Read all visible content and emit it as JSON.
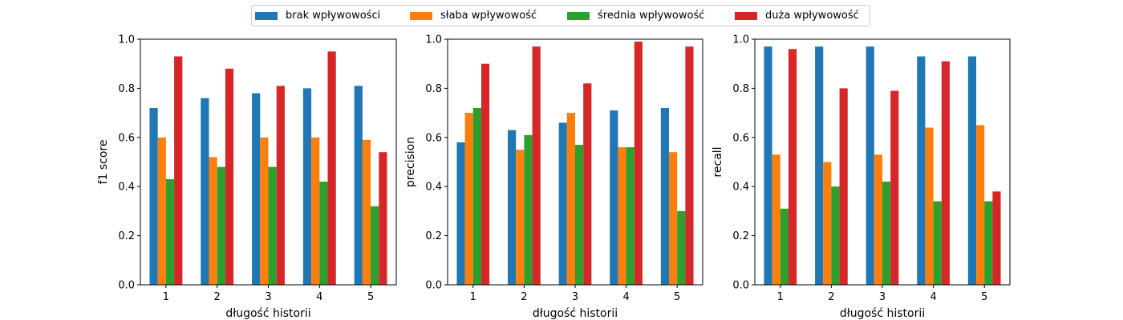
{
  "legend": [
    {
      "label": "brak wpływowości",
      "color": "#1f77b4"
    },
    {
      "label": "słaba wpływowość",
      "color": "#ff7f0e"
    },
    {
      "label": "średnia wpływowość",
      "color": "#2ca02c"
    },
    {
      "label": "duża wpływowość",
      "color": "#d62728"
    }
  ],
  "chart_data": [
    {
      "type": "bar",
      "categories": [
        "1",
        "2",
        "3",
        "4",
        "5"
      ],
      "xlabel": "długość historii",
      "ylabel": "f1 score",
      "ylim": [
        0,
        1.0
      ],
      "yticks": [
        "0.0",
        "0.2",
        "0.4",
        "0.6",
        "0.8",
        "1.0"
      ],
      "series": [
        {
          "name": "brak wpływowości",
          "values": [
            0.72,
            0.76,
            0.78,
            0.8,
            0.81
          ]
        },
        {
          "name": "słaba wpływowość",
          "values": [
            0.6,
            0.52,
            0.6,
            0.6,
            0.59
          ]
        },
        {
          "name": "średnia wpływowość",
          "values": [
            0.43,
            0.48,
            0.48,
            0.42,
            0.32
          ]
        },
        {
          "name": "duża wpływowość",
          "values": [
            0.93,
            0.88,
            0.81,
            0.95,
            0.54
          ]
        }
      ]
    },
    {
      "type": "bar",
      "categories": [
        "1",
        "2",
        "3",
        "4",
        "5"
      ],
      "xlabel": "długość historii",
      "ylabel": "precision",
      "ylim": [
        0,
        1.0
      ],
      "yticks": [
        "0.0",
        "0.2",
        "0.4",
        "0.6",
        "0.8",
        "1.0"
      ],
      "series": [
        {
          "name": "brak wpływowości",
          "values": [
            0.58,
            0.63,
            0.66,
            0.71,
            0.72
          ]
        },
        {
          "name": "słaba wpływowość",
          "values": [
            0.7,
            0.55,
            0.7,
            0.56,
            0.54
          ]
        },
        {
          "name": "średnia wpływowość",
          "values": [
            0.72,
            0.61,
            0.57,
            0.56,
            0.3
          ]
        },
        {
          "name": "duża wpływowość",
          "values": [
            0.9,
            0.97,
            0.82,
            0.99,
            0.97
          ]
        }
      ]
    },
    {
      "type": "bar",
      "categories": [
        "1",
        "2",
        "3",
        "4",
        "5"
      ],
      "xlabel": "długość historii",
      "ylabel": "recall",
      "ylim": [
        0,
        1.0
      ],
      "yticks": [
        "0.0",
        "0.2",
        "0.4",
        "0.6",
        "0.8",
        "1.0"
      ],
      "series": [
        {
          "name": "brak wpływowości",
          "values": [
            0.97,
            0.97,
            0.97,
            0.93,
            0.93
          ]
        },
        {
          "name": "słaba wpływowość",
          "values": [
            0.53,
            0.5,
            0.53,
            0.64,
            0.65
          ]
        },
        {
          "name": "średnia wpływowość",
          "values": [
            0.31,
            0.4,
            0.42,
            0.34,
            0.34
          ]
        },
        {
          "name": "duża wpływowość",
          "values": [
            0.96,
            0.8,
            0.79,
            0.91,
            0.38
          ]
        }
      ]
    }
  ]
}
